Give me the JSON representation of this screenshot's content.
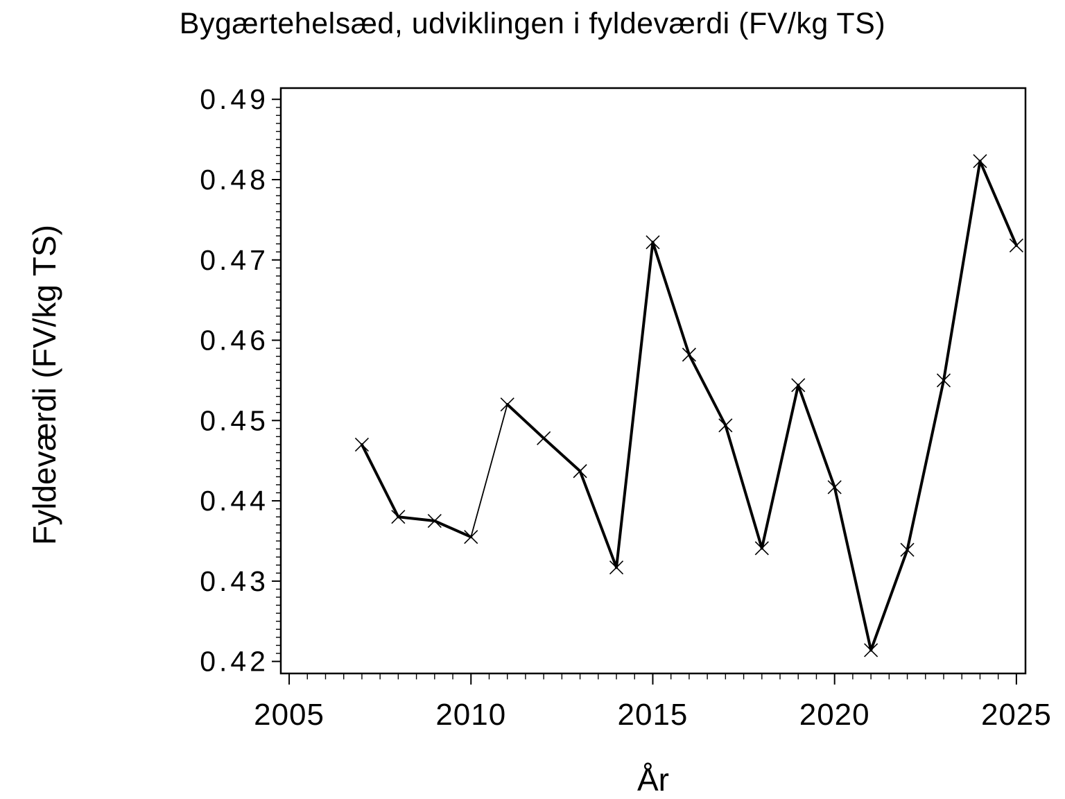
{
  "chart_data": {
    "type": "line",
    "title": "Bygærtehelsæd, udviklingen i fyldeværdi (FV/kg TS)",
    "xlabel": "År",
    "ylabel": "Fyldeværdi (FV/kg TS)",
    "series": [
      {
        "name": "Fyldeværdi",
        "x": [
          2007,
          2008,
          2009,
          2010,
          2011,
          2012,
          2013,
          2014,
          2015,
          2016,
          2017,
          2018,
          2019,
          2020,
          2021,
          2022,
          2023,
          2024,
          2025
        ],
        "y": [
          0.447,
          0.438,
          0.4375,
          0.4355,
          0.452,
          0.4478,
          0.4437,
          0.4317,
          0.4722,
          0.4582,
          0.4494,
          0.4341,
          0.4544,
          0.4417,
          0.4214,
          0.4339,
          0.455,
          0.4823,
          0.4718
        ]
      }
    ],
    "xlim": [
      2004.77,
      2025.25
    ],
    "ylim": [
      0.4185,
      0.4914
    ],
    "xticks": [
      2005,
      2010,
      2015,
      2020,
      2025
    ],
    "xtick_labels": [
      "2005",
      "2010",
      "2015",
      "2020",
      "2025"
    ],
    "xminor_step": 0.5,
    "yticks": [
      0.42,
      0.43,
      0.44,
      0.45,
      0.46,
      0.47,
      0.48,
      0.49
    ],
    "ytick_labels": [
      "0.42",
      "0.43",
      "0.44",
      "0.45",
      "0.46",
      "0.47",
      "0.48",
      "0.49"
    ],
    "yminor_step": 0.001,
    "marker": "x",
    "line_color": "#000000",
    "text_color": "#000000",
    "background_color": "#FFFFFF",
    "grid": false,
    "legend": "none"
  }
}
